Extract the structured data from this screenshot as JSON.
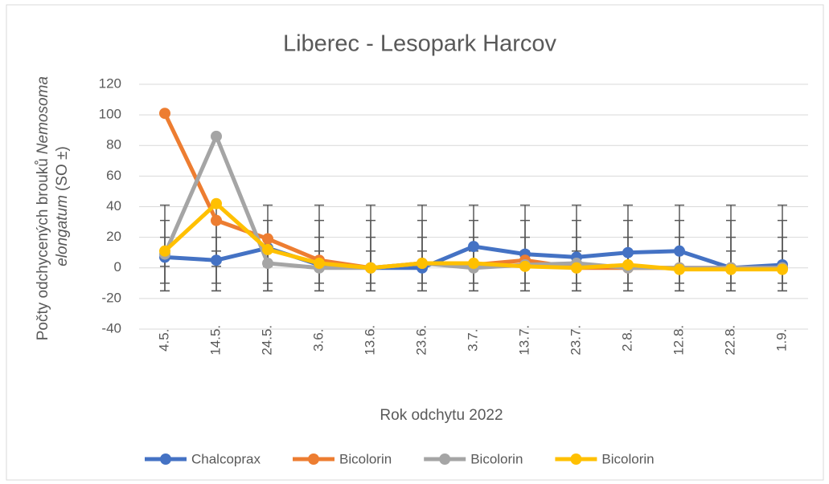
{
  "chart_data": {
    "type": "line",
    "title": "Liberec - Lesopark Harcov",
    "x_label": "Rok odchytu 2022",
    "y_label": [
      "Počty odchycených brouků",
      "Nemosoma",
      "elongatum",
      "(SO ±)"
    ],
    "categories": [
      "4.5.",
      "14.5.",
      "24.5.",
      "3.6.",
      "13.6.",
      "23.6.",
      "3.7.",
      "13.7.",
      "23.7.",
      "2.8.",
      "12.8.",
      "22.8.",
      "1.9."
    ],
    "ylim": [
      -40,
      120
    ],
    "yticks": [
      -40,
      -20,
      0,
      20,
      40,
      60,
      80,
      100,
      120
    ],
    "grid": true,
    "legend": "bottom",
    "series": [
      {
        "name": "Chalcoprax",
        "color": "#4472c4",
        "values": [
          7,
          5,
          13,
          2,
          0,
          0,
          14,
          9,
          7,
          10,
          11,
          0,
          2
        ],
        "error_bar": [
          1,
          11
        ]
      },
      {
        "name": "Bicolorin",
        "color": "#ed7d31",
        "values": [
          101,
          31,
          19,
          5,
          0,
          3,
          2,
          5,
          0,
          0,
          0,
          0,
          0
        ],
        "error_bar": [
          -15,
          41
        ]
      },
      {
        "name": "Bicolorin",
        "color": "#a5a5a5",
        "values": [
          9,
          86,
          3,
          0,
          0,
          3,
          0,
          2,
          3,
          0,
          0,
          0,
          0
        ],
        "error_bar": [
          -15,
          31
        ]
      },
      {
        "name": "Bicolorin",
        "color": "#ffc000",
        "values": [
          11,
          42,
          12,
          3,
          0,
          3,
          3,
          1,
          0,
          2,
          -1,
          -1,
          -1
        ],
        "error_bar": [
          -10,
          20
        ]
      }
    ]
  }
}
